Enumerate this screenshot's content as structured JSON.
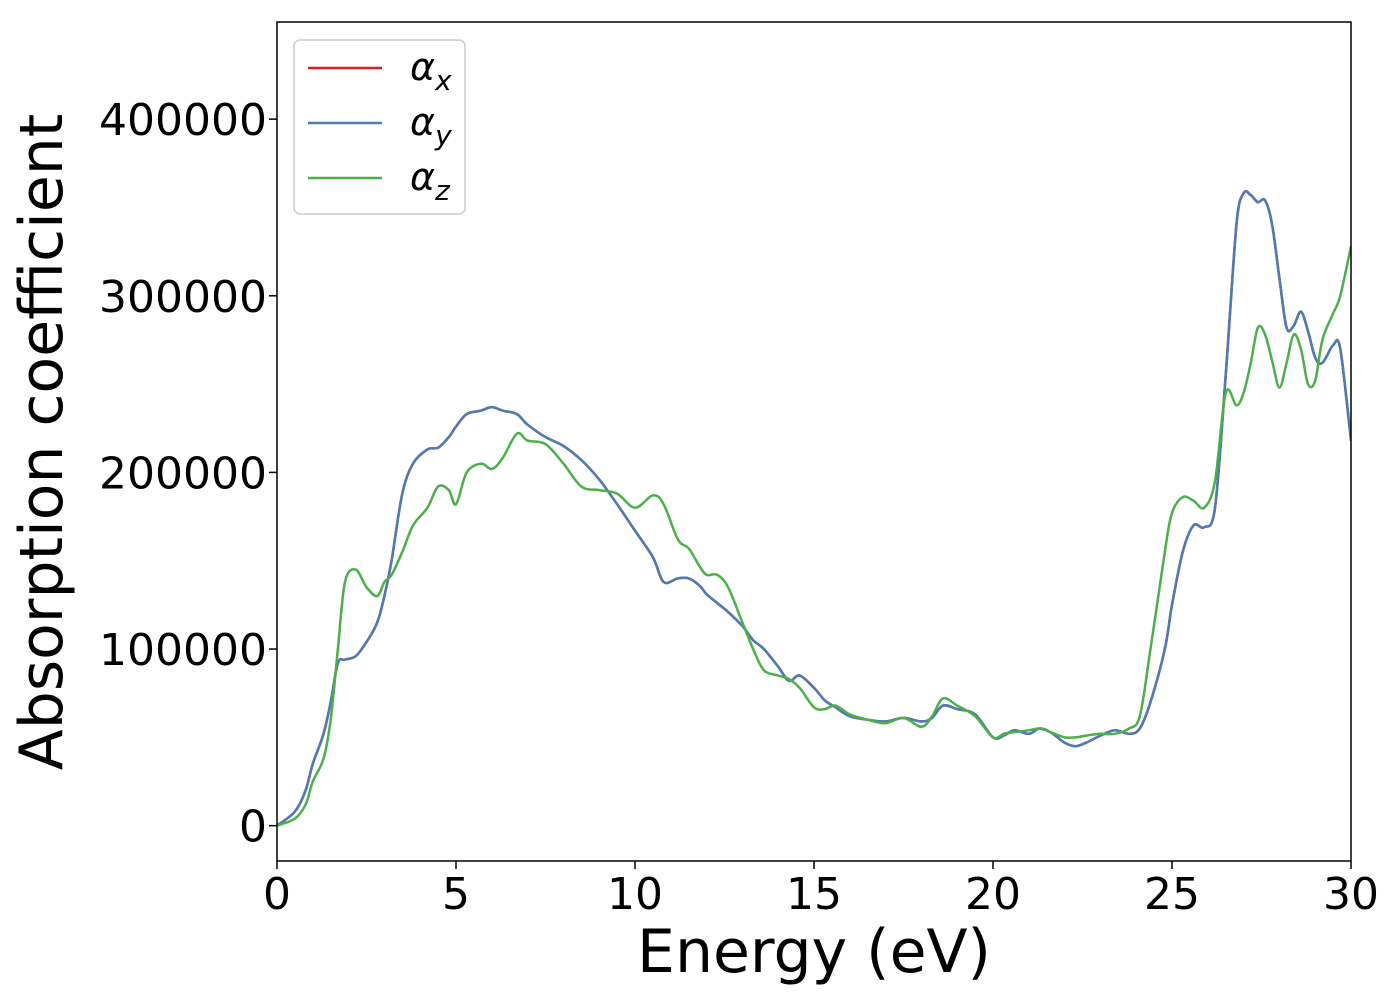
{
  "chart_data": {
    "type": "line",
    "title": "",
    "xlabel": "Energy (eV)",
    "ylabel": "Absorption coefficient",
    "xlim": [
      0,
      30
    ],
    "ylim": [
      -20000,
      455000
    ],
    "xticks": [
      0,
      5,
      10,
      15,
      20,
      25,
      30
    ],
    "yticks": [
      0,
      100000,
      200000,
      300000,
      400000
    ],
    "grid": false,
    "legend_position": "top-left",
    "series": [
      {
        "name": "α_x",
        "legend_label": {
          "base": "α",
          "sub": "x"
        },
        "color": "#e41a1c",
        "x": [
          0,
          0.5,
          0.8,
          1.0,
          1.3,
          1.5,
          1.7,
          1.9,
          2.2,
          2.5,
          2.8,
          3.0,
          3.2,
          3.5,
          3.8,
          4.2,
          4.5,
          4.8,
          5.0,
          5.3,
          5.7,
          6.0,
          6.3,
          6.7,
          7.0,
          7.5,
          8.0,
          8.5,
          9.0,
          9.5,
          10.0,
          10.5,
          10.8,
          11.2,
          11.5,
          11.8,
          12.0,
          12.3,
          12.6,
          13.0,
          13.3,
          13.6,
          14.0,
          14.3,
          14.6,
          15.0,
          15.3,
          15.6,
          16.0,
          16.5,
          17.0,
          17.5,
          18.0,
          18.3,
          18.6,
          19.0,
          19.5,
          20.0,
          20.3,
          20.6,
          21.0,
          21.3,
          21.6,
          22.0,
          22.3,
          22.6,
          23.0,
          23.4,
          23.8,
          24.1,
          24.4,
          24.8,
          25.0,
          25.3,
          25.6,
          25.9,
          26.2,
          26.5,
          26.8,
          27.0,
          27.2,
          27.4,
          27.6,
          27.8,
          28.0,
          28.2,
          28.4,
          28.6,
          28.8,
          29.0,
          29.2,
          29.5,
          29.7,
          30.0
        ],
        "y": [
          0,
          8000,
          20000,
          35000,
          52000,
          70000,
          92000,
          94000,
          96000,
          104000,
          115000,
          130000,
          150000,
          188000,
          205000,
          213000,
          214000,
          220000,
          226000,
          233000,
          235000,
          237000,
          235000,
          233000,
          227000,
          220000,
          215000,
          207000,
          196000,
          182000,
          167000,
          152000,
          138000,
          140000,
          140000,
          136000,
          131000,
          126000,
          121000,
          113000,
          105000,
          100000,
          90000,
          82000,
          85000,
          78000,
          71000,
          67000,
          62000,
          60000,
          59000,
          61000,
          59000,
          61000,
          68000,
          66000,
          63000,
          50000,
          51000,
          54000,
          52000,
          55000,
          53000,
          47000,
          45000,
          47000,
          51000,
          54000,
          52000,
          55000,
          70000,
          100000,
          125000,
          155000,
          170000,
          169000,
          180000,
          255000,
          340000,
          358000,
          357000,
          353000,
          354000,
          340000,
          310000,
          282000,
          283000,
          291000,
          280000,
          265000,
          262000,
          272000,
          270000,
          218000
        ]
      },
      {
        "name": "α_y",
        "legend_label": {
          "base": "α",
          "sub": "y"
        },
        "color": "#4a7db3",
        "x": [
          0,
          0.5,
          0.8,
          1.0,
          1.3,
          1.5,
          1.7,
          1.9,
          2.2,
          2.5,
          2.8,
          3.0,
          3.2,
          3.5,
          3.8,
          4.2,
          4.5,
          4.8,
          5.0,
          5.3,
          5.7,
          6.0,
          6.3,
          6.7,
          7.0,
          7.5,
          8.0,
          8.5,
          9.0,
          9.5,
          10.0,
          10.5,
          10.8,
          11.2,
          11.5,
          11.8,
          12.0,
          12.3,
          12.6,
          13.0,
          13.3,
          13.6,
          14.0,
          14.3,
          14.6,
          15.0,
          15.3,
          15.6,
          16.0,
          16.5,
          17.0,
          17.5,
          18.0,
          18.3,
          18.6,
          19.0,
          19.5,
          20.0,
          20.3,
          20.6,
          21.0,
          21.3,
          21.6,
          22.0,
          22.3,
          22.6,
          23.0,
          23.4,
          23.8,
          24.1,
          24.4,
          24.8,
          25.0,
          25.3,
          25.6,
          25.9,
          26.2,
          26.5,
          26.8,
          27.0,
          27.2,
          27.4,
          27.6,
          27.8,
          28.0,
          28.2,
          28.4,
          28.6,
          28.8,
          29.0,
          29.2,
          29.5,
          29.7,
          30.0
        ],
        "y": [
          0,
          8000,
          20000,
          35000,
          52000,
          70000,
          92000,
          94000,
          96000,
          104000,
          115000,
          130000,
          150000,
          188000,
          205000,
          213000,
          214000,
          220000,
          226000,
          233000,
          235000,
          237000,
          235000,
          233000,
          227000,
          220000,
          215000,
          207000,
          196000,
          182000,
          167000,
          152000,
          138000,
          140000,
          140000,
          136000,
          131000,
          126000,
          121000,
          113000,
          105000,
          100000,
          90000,
          82000,
          85000,
          78000,
          71000,
          67000,
          62000,
          60000,
          59000,
          61000,
          59000,
          61000,
          68000,
          66000,
          63000,
          50000,
          51000,
          54000,
          52000,
          55000,
          53000,
          47000,
          45000,
          47000,
          51000,
          54000,
          52000,
          55000,
          70000,
          100000,
          125000,
          155000,
          170000,
          169000,
          180000,
          255000,
          340000,
          358000,
          357000,
          353000,
          354000,
          340000,
          310000,
          282000,
          283000,
          291000,
          280000,
          265000,
          262000,
          272000,
          270000,
          218000
        ]
      },
      {
        "name": "α_z",
        "legend_label": {
          "base": "α",
          "sub": "z"
        },
        "color": "#4daf4a",
        "x": [
          0,
          0.5,
          0.8,
          1.0,
          1.3,
          1.5,
          1.7,
          1.9,
          2.2,
          2.5,
          2.8,
          3.0,
          3.2,
          3.5,
          3.8,
          4.2,
          4.5,
          4.8,
          5.0,
          5.3,
          5.7,
          6.0,
          6.3,
          6.7,
          7.0,
          7.5,
          8.0,
          8.5,
          9.0,
          9.5,
          10.0,
          10.5,
          10.8,
          11.2,
          11.5,
          11.8,
          12.0,
          12.3,
          12.6,
          13.0,
          13.3,
          13.6,
          14.0,
          14.3,
          14.6,
          15.0,
          15.3,
          15.6,
          16.0,
          16.5,
          17.0,
          17.5,
          18.0,
          18.3,
          18.6,
          19.0,
          19.5,
          20.0,
          20.3,
          20.6,
          21.0,
          21.3,
          21.6,
          22.0,
          22.3,
          22.6,
          23.0,
          23.4,
          23.8,
          24.1,
          24.4,
          24.8,
          25.0,
          25.3,
          25.6,
          25.9,
          26.2,
          26.5,
          26.8,
          27.0,
          27.2,
          27.4,
          27.6,
          27.8,
          28.0,
          28.2,
          28.4,
          28.6,
          28.8,
          29.0,
          29.2,
          29.5,
          29.7,
          30.0
        ],
        "y": [
          0,
          4000,
          12000,
          25000,
          38000,
          60000,
          100000,
          138000,
          145000,
          135000,
          130000,
          138000,
          142000,
          155000,
          170000,
          180000,
          192000,
          190000,
          182000,
          200000,
          205000,
          202000,
          208000,
          222000,
          218000,
          216000,
          205000,
          192000,
          190000,
          188000,
          180000,
          187000,
          182000,
          162000,
          157000,
          147000,
          142000,
          142000,
          135000,
          115000,
          100000,
          88000,
          85000,
          83000,
          78000,
          67000,
          66000,
          68000,
          63000,
          60000,
          58000,
          61000,
          56000,
          62000,
          72000,
          68000,
          62000,
          50000,
          52000,
          53000,
          54000,
          55000,
          53000,
          50000,
          50000,
          51000,
          52000,
          52000,
          55000,
          62000,
          100000,
          155000,
          177000,
          186000,
          184000,
          180000,
          195000,
          245000,
          238000,
          245000,
          262000,
          282000,
          278000,
          263000,
          248000,
          262000,
          278000,
          270000,
          250000,
          252000,
          275000,
          290000,
          300000,
          328000
        ]
      }
    ]
  }
}
